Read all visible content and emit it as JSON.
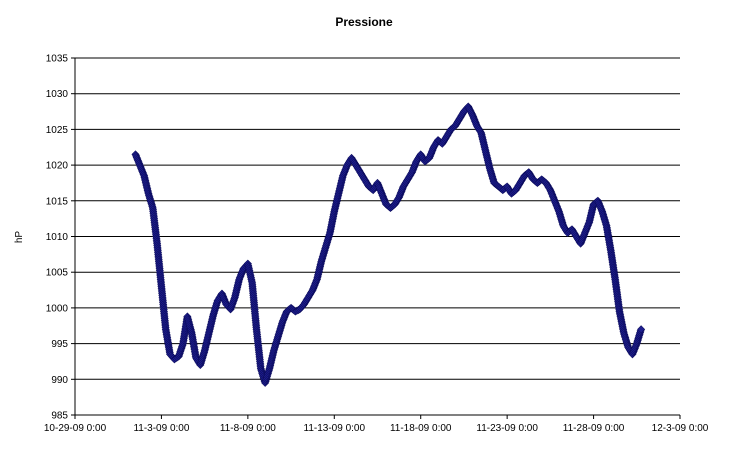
{
  "chart_data": {
    "type": "scatter",
    "title": "Pressione",
    "xlabel": "",
    "ylabel": "hP",
    "xlim": [
      "10-29-09 0:00",
      "12-3-09 0:00"
    ],
    "ylim": [
      985,
      1035
    ],
    "x_tick_labels": [
      "10-29-09 0:00",
      "11-3-09 0:00",
      "11-8-09 0:00",
      "11-13-09 0:00",
      "11-18-09 0:00",
      "11-23-09 0:00",
      "11-28-09 0:00",
      "12-3-09 0:00"
    ],
    "y_tick_labels": [
      "985",
      "990",
      "995",
      "1000",
      "1005",
      "1010",
      "1015",
      "1020",
      "1025",
      "1030",
      "1035"
    ],
    "grid": "horizontal",
    "legend": "none",
    "marker": "diamond",
    "series_color": "#1f1f8f",
    "series": [
      {
        "points": [
          [
            "2009-11-01 12:00",
            1021.5
          ],
          [
            "2009-11-01 18:00",
            1020.0
          ],
          [
            "2009-11-02 00:00",
            1018.5
          ],
          [
            "2009-11-02 06:00",
            1016.0
          ],
          [
            "2009-11-02 12:00",
            1014.0
          ],
          [
            "2009-11-02 18:00",
            1009.0
          ],
          [
            "2009-11-03 00:00",
            1003.0
          ],
          [
            "2009-11-03 06:00",
            997.0
          ],
          [
            "2009-11-03 12:00",
            993.5
          ],
          [
            "2009-11-03 18:00",
            992.8
          ],
          [
            "2009-11-04 00:00",
            993.2
          ],
          [
            "2009-11-04 06:00",
            995.0
          ],
          [
            "2009-11-04 12:00",
            998.8
          ],
          [
            "2009-11-04 18:00",
            996.5
          ],
          [
            "2009-11-05 00:00",
            993.0
          ],
          [
            "2009-11-05 06:00",
            992.0
          ],
          [
            "2009-11-05 12:00",
            994.0
          ],
          [
            "2009-11-05 18:00",
            996.5
          ],
          [
            "2009-11-06 00:00",
            999.0
          ],
          [
            "2009-11-06 06:00",
            1001.0
          ],
          [
            "2009-11-06 12:00",
            1002.0
          ],
          [
            "2009-11-06 18:00",
            1000.5
          ],
          [
            "2009-11-07 00:00",
            999.8
          ],
          [
            "2009-11-07 06:00",
            1001.5
          ],
          [
            "2009-11-07 12:00",
            1004.0
          ],
          [
            "2009-11-07 18:00",
            1005.5
          ],
          [
            "2009-11-08 00:00",
            1006.2
          ],
          [
            "2009-11-08 06:00",
            1003.5
          ],
          [
            "2009-11-08 12:00",
            997.0
          ],
          [
            "2009-11-08 18:00",
            991.5
          ],
          [
            "2009-11-09 00:00",
            989.5
          ],
          [
            "2009-11-09 06:00",
            991.5
          ],
          [
            "2009-11-09 12:00",
            994.0
          ],
          [
            "2009-11-09 18:00",
            996.0
          ],
          [
            "2009-11-10 00:00",
            998.0
          ],
          [
            "2009-11-10 06:00",
            999.5
          ],
          [
            "2009-11-10 12:00",
            1000.0
          ],
          [
            "2009-11-10 18:00",
            999.5
          ],
          [
            "2009-11-11 00:00",
            999.8
          ],
          [
            "2009-11-11 06:00",
            1000.5
          ],
          [
            "2009-11-11 12:00",
            1001.5
          ],
          [
            "2009-11-11 18:00",
            1002.5
          ],
          [
            "2009-11-12 00:00",
            1004.0
          ],
          [
            "2009-11-12 06:00",
            1006.5
          ],
          [
            "2009-11-12 12:00",
            1008.5
          ],
          [
            "2009-11-12 18:00",
            1010.5
          ],
          [
            "2009-11-13 00:00",
            1013.5
          ],
          [
            "2009-11-13 06:00",
            1016.0
          ],
          [
            "2009-11-13 12:00",
            1018.5
          ],
          [
            "2009-11-13 18:00",
            1020.0
          ],
          [
            "2009-11-14 00:00",
            1021.0
          ],
          [
            "2009-11-14 06:00",
            1020.0
          ],
          [
            "2009-11-14 12:00",
            1019.0
          ],
          [
            "2009-11-14 18:00",
            1018.0
          ],
          [
            "2009-11-15 00:00",
            1017.0
          ],
          [
            "2009-11-15 06:00",
            1016.5
          ],
          [
            "2009-11-15 12:00",
            1017.5
          ],
          [
            "2009-11-15 18:00",
            1016.0
          ],
          [
            "2009-11-16 00:00",
            1014.5
          ],
          [
            "2009-11-16 06:00",
            1014.0
          ],
          [
            "2009-11-16 12:00",
            1014.5
          ],
          [
            "2009-11-16 18:00",
            1015.5
          ],
          [
            "2009-11-17 00:00",
            1017.0
          ],
          [
            "2009-11-17 06:00",
            1018.0
          ],
          [
            "2009-11-17 12:00",
            1019.0
          ],
          [
            "2009-11-17 18:00",
            1020.5
          ],
          [
            "2009-11-18 00:00",
            1021.5
          ],
          [
            "2009-11-18 06:00",
            1020.5
          ],
          [
            "2009-11-18 12:00",
            1021.0
          ],
          [
            "2009-11-18 18:00",
            1022.5
          ],
          [
            "2009-11-19 00:00",
            1023.5
          ],
          [
            "2009-11-19 06:00",
            1023.0
          ],
          [
            "2009-11-19 12:00",
            1024.0
          ],
          [
            "2009-11-19 18:00",
            1025.0
          ],
          [
            "2009-11-20 00:00",
            1025.5
          ],
          [
            "2009-11-20 06:00",
            1026.5
          ],
          [
            "2009-11-20 12:00",
            1027.5
          ],
          [
            "2009-11-20 18:00",
            1028.2
          ],
          [
            "2009-11-21 00:00",
            1027.0
          ],
          [
            "2009-11-21 06:00",
            1025.5
          ],
          [
            "2009-11-21 12:00",
            1024.5
          ],
          [
            "2009-11-21 18:00",
            1022.0
          ],
          [
            "2009-11-22 00:00",
            1019.5
          ],
          [
            "2009-11-22 06:00",
            1017.5
          ],
          [
            "2009-11-22 12:00",
            1017.0
          ],
          [
            "2009-11-22 18:00",
            1016.5
          ],
          [
            "2009-11-23 00:00",
            1017.0
          ],
          [
            "2009-11-23 06:00",
            1016.0
          ],
          [
            "2009-11-23 12:00",
            1016.5
          ],
          [
            "2009-11-23 18:00",
            1017.5
          ],
          [
            "2009-11-24 00:00",
            1018.5
          ],
          [
            "2009-11-24 06:00",
            1019.0
          ],
          [
            "2009-11-24 12:00",
            1018.0
          ],
          [
            "2009-11-24 18:00",
            1017.5
          ],
          [
            "2009-11-25 00:00",
            1018.0
          ],
          [
            "2009-11-25 06:00",
            1017.5
          ],
          [
            "2009-11-25 12:00",
            1016.5
          ],
          [
            "2009-11-25 18:00",
            1015.0
          ],
          [
            "2009-11-26 00:00",
            1013.5
          ],
          [
            "2009-11-26 06:00",
            1011.5
          ],
          [
            "2009-11-26 12:00",
            1010.5
          ],
          [
            "2009-11-26 18:00",
            1011.0
          ],
          [
            "2009-11-27 00:00",
            1010.0
          ],
          [
            "2009-11-27 06:00",
            1009.0
          ],
          [
            "2009-11-27 12:00",
            1010.5
          ],
          [
            "2009-11-27 18:00",
            1012.0
          ],
          [
            "2009-11-28 00:00",
            1014.5
          ],
          [
            "2009-11-28 06:00",
            1015.0
          ],
          [
            "2009-11-28 12:00",
            1013.5
          ],
          [
            "2009-11-28 18:00",
            1011.5
          ],
          [
            "2009-11-29 00:00",
            1008.0
          ],
          [
            "2009-11-29 06:00",
            1004.0
          ],
          [
            "2009-11-29 12:00",
            999.5
          ],
          [
            "2009-11-29 18:00",
            996.5
          ],
          [
            "2009-11-30 00:00",
            994.5
          ],
          [
            "2009-11-30 06:00",
            993.5
          ],
          [
            "2009-11-30 12:00",
            995.0
          ],
          [
            "2009-11-30 18:00",
            997.0
          ]
        ]
      }
    ]
  }
}
